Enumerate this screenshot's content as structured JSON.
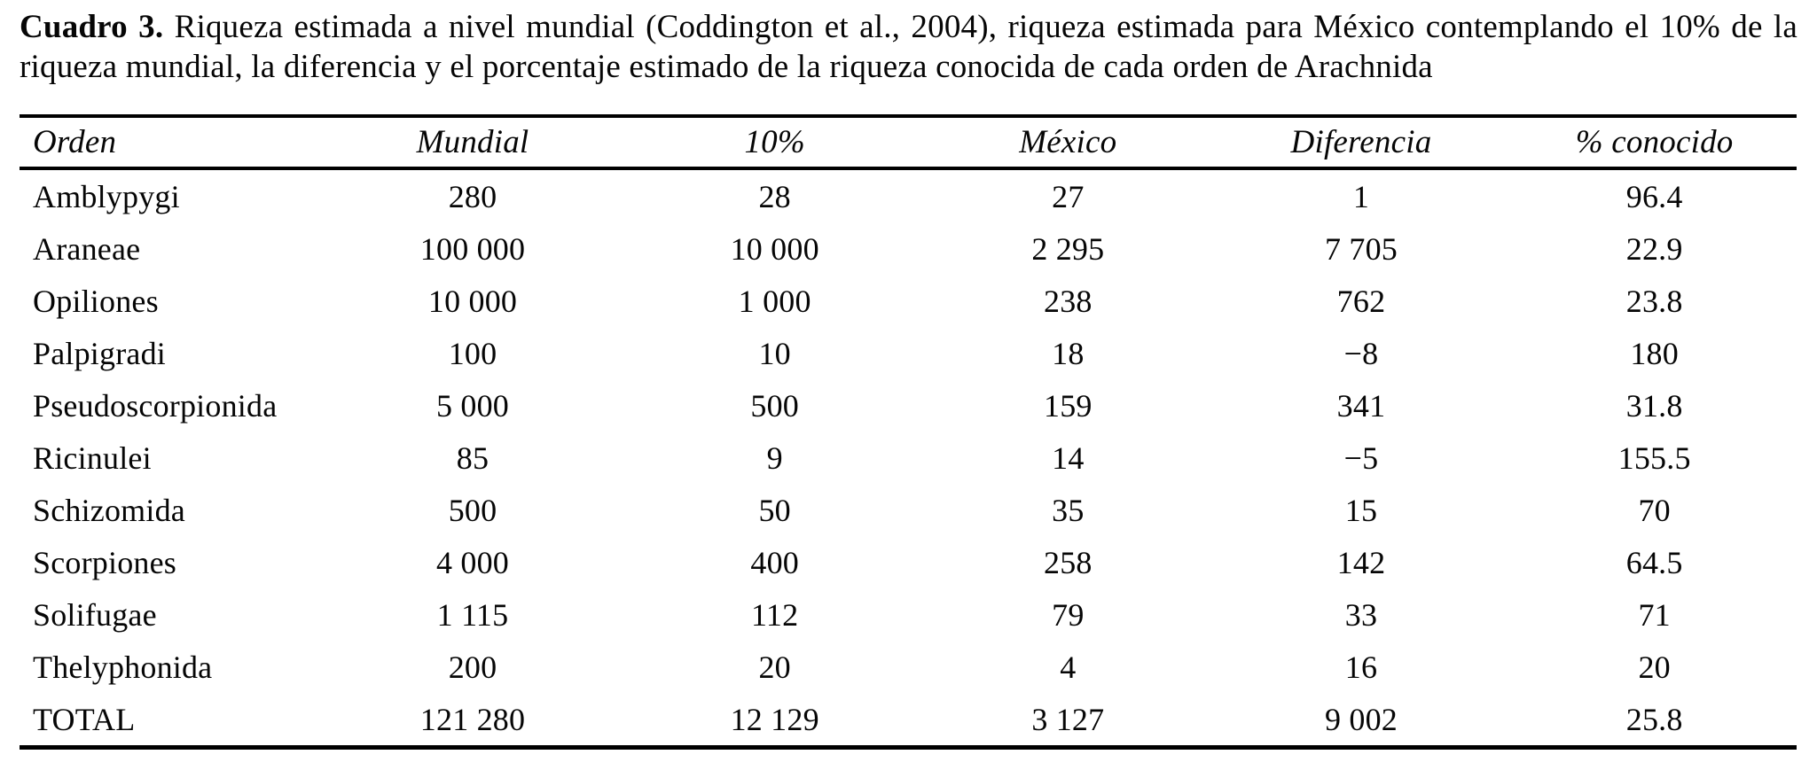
{
  "caption": {
    "label": "Cuadro 3.",
    "line1_rest": " Riqueza estimada a nivel mundial (Coddington et al., 2004), riqueza estimada para México contemplando el 10% de la",
    "line2": "riqueza mundial, la diferencia y el porcentaje estimado de la riqueza conocida de cada orden de Arachnida"
  },
  "table": {
    "columns": [
      "Orden",
      "Mundial",
      "10%",
      "México",
      "Diferencia",
      "% conocido"
    ],
    "rows": [
      [
        "Amblypygi",
        "280",
        "28",
        "27",
        "1",
        "96.4"
      ],
      [
        "Araneae",
        "100 000",
        "10 000",
        "2 295",
        "7 705",
        "22.9"
      ],
      [
        "Opiliones",
        "10 000",
        "1 000",
        "238",
        "762",
        "23.8"
      ],
      [
        "Palpigradi",
        "100",
        "10",
        "18",
        "−8",
        "180"
      ],
      [
        "Pseudoscorpionida",
        "5 000",
        "500",
        "159",
        "341",
        "31.8"
      ],
      [
        "Ricinulei",
        "85",
        "9",
        "14",
        "−5",
        "155.5"
      ],
      [
        "Schizomida",
        "500",
        "50",
        "35",
        "15",
        "70"
      ],
      [
        "Scorpiones",
        "4 000",
        "400",
        "258",
        "142",
        "64.5"
      ],
      [
        "Solifugae",
        "1 115",
        "112",
        "79",
        "33",
        "71"
      ],
      [
        "Thelyphonida",
        "200",
        "20",
        "4",
        "16",
        "20"
      ],
      [
        "TOTAL",
        "121 280",
        "12 129",
        "3 127",
        "9 002",
        "25.8"
      ]
    ]
  },
  "chart_data": {
    "type": "table",
    "title": "Cuadro 3. Riqueza estimada a nivel mundial (Coddington et al., 2004), riqueza estimada para México contemplando el 10% de la riqueza mundial, la diferencia y el porcentaje estimado de la riqueza conocida de cada orden de Arachnida",
    "columns": [
      "Orden",
      "Mundial",
      "10%",
      "México",
      "Diferencia",
      "% conocido"
    ],
    "rows": [
      [
        "Amblypygi",
        280,
        28,
        27,
        1,
        96.4
      ],
      [
        "Araneae",
        100000,
        10000,
        2295,
        7705,
        22.9
      ],
      [
        "Opiliones",
        10000,
        1000,
        238,
        762,
        23.8
      ],
      [
        "Palpigradi",
        100,
        10,
        18,
        -8,
        180
      ],
      [
        "Pseudoscorpionida",
        5000,
        500,
        159,
        341,
        31.8
      ],
      [
        "Ricinulei",
        85,
        9,
        14,
        -5,
        155.5
      ],
      [
        "Schizomida",
        500,
        50,
        35,
        15,
        70
      ],
      [
        "Scorpiones",
        4000,
        400,
        258,
        142,
        64.5
      ],
      [
        "Solifugae",
        1115,
        112,
        79,
        33,
        71
      ],
      [
        "Thelyphonida",
        200,
        20,
        4,
        16,
        20
      ],
      [
        "TOTAL",
        121280,
        12129,
        3127,
        9002,
        25.8
      ]
    ],
    "text_color": "#060606",
    "rule_color": "#000000",
    "background": "#ffffff"
  }
}
